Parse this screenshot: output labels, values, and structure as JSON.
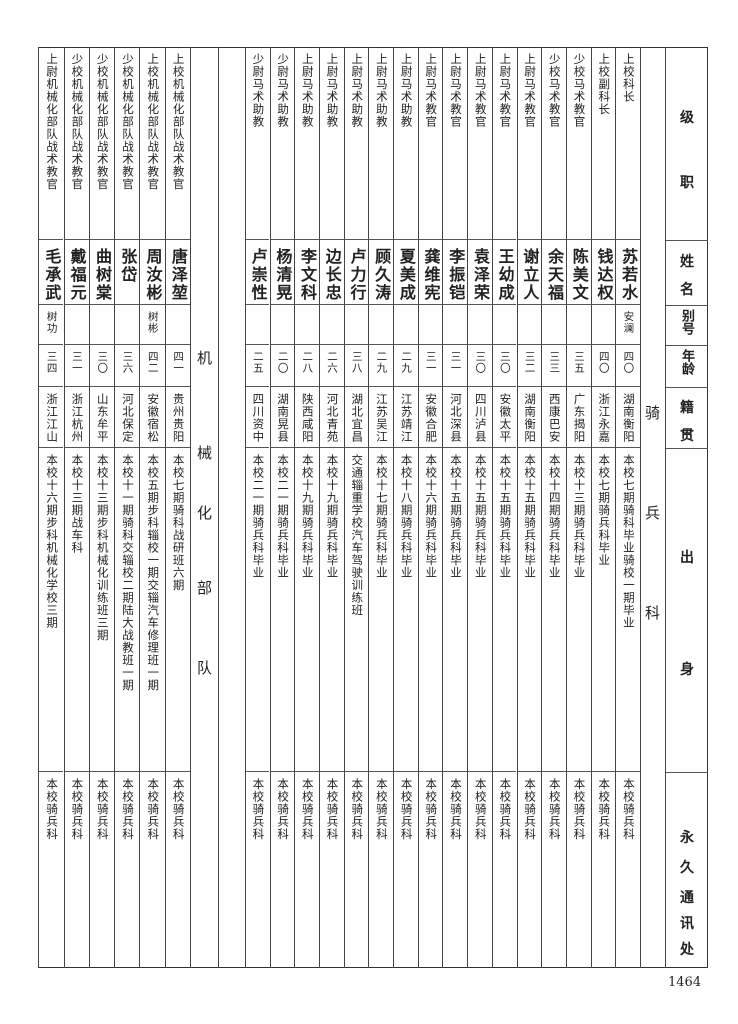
{
  "header": {
    "rank": [
      "级",
      "职"
    ],
    "name": [
      "姓",
      "名"
    ],
    "alias": "别号",
    "age": "年龄",
    "native": [
      "籍",
      "贯"
    ],
    "origin": [
      "出",
      "身"
    ],
    "address": [
      "永",
      "久",
      "通",
      "讯",
      "处"
    ]
  },
  "sections": {
    "cavalry": [
      "骑",
      "兵",
      "科"
    ],
    "mechanized": [
      "机",
      "械",
      "化",
      "部",
      "队"
    ]
  },
  "cavalry_rows": [
    {
      "rank": "上校科长",
      "name": "苏若水",
      "alias": "安澜",
      "age": "四〇",
      "native": "湖南衡阳",
      "origin": "本校七期骑科毕业骑校一期毕业",
      "address": "本校骑兵科"
    },
    {
      "rank": "上校副科长",
      "name": "钱达权",
      "alias": "",
      "age": "四〇",
      "native": "浙江永嘉",
      "origin": "本校七期骑兵科毕业",
      "address": "本校骑兵科"
    },
    {
      "rank": "少校马术教官",
      "name": "陈美文",
      "alias": "",
      "age": "三五",
      "native": "广东揭阳",
      "origin": "本校十三期骑兵科毕业",
      "address": "本校骑兵科"
    },
    {
      "rank": "少校马术教官",
      "name": "余天福",
      "alias": "",
      "age": "三三",
      "native": "西康巴安",
      "origin": "本校十四期骑兵科毕业",
      "address": "本校骑兵科"
    },
    {
      "rank": "上尉马术教官",
      "name": "谢立人",
      "alias": "",
      "age": "三二",
      "native": "湖南衡阳",
      "origin": "本校十五期骑兵科毕业",
      "address": "本校骑兵科"
    },
    {
      "rank": "上尉马术教官",
      "name": "王幼成",
      "alias": "",
      "age": "三〇",
      "native": "安徽太平",
      "origin": "本校十五期骑兵科毕业",
      "address": "本校骑兵科"
    },
    {
      "rank": "上尉马术教官",
      "name": "袁泽荣",
      "alias": "",
      "age": "三〇",
      "native": "四川泸县",
      "origin": "本校十五期骑兵科毕业",
      "address": "本校骑兵科"
    },
    {
      "rank": "上尉马术教官",
      "name": "李振铠",
      "alias": "",
      "age": "三一",
      "native": "河北深县",
      "origin": "本校十五期骑兵科毕业",
      "address": "本校骑兵科"
    },
    {
      "rank": "上尉马术教官",
      "name": "龚维宪",
      "alias": "",
      "age": "三一",
      "native": "安徽合肥",
      "origin": "本校十六期骑兵科毕业",
      "address": "本校骑兵科"
    },
    {
      "rank": "上尉马术助教",
      "name": "夏美成",
      "alias": "",
      "age": "二九",
      "native": "江苏靖江",
      "origin": "本校十八期骑兵科毕业",
      "address": "本校骑兵科"
    },
    {
      "rank": "上尉马术助教",
      "name": "顾久涛",
      "alias": "",
      "age": "二九",
      "native": "江苏吴江",
      "origin": "本校十七期骑兵科毕业",
      "address": "本校骑兵科"
    },
    {
      "rank": "上尉马术助教",
      "name": "卢力行",
      "alias": "",
      "age": "三八",
      "native": "湖北宜昌",
      "origin": "交通辎重学校汽车驾驶训练班",
      "address": "本校骑兵科"
    },
    {
      "rank": "上尉马术助教",
      "name": "边长忠",
      "alias": "",
      "age": "二六",
      "native": "河北青苑",
      "origin": "本校十九期骑兵科毕业",
      "address": "本校骑兵科"
    },
    {
      "rank": "上尉马术助教",
      "name": "李文科",
      "alias": "",
      "age": "二八",
      "native": "陕西咸阳",
      "origin": "本校十九期骑兵科毕业",
      "address": "本校骑兵科"
    },
    {
      "rank": "少尉马术助教",
      "name": "杨清晃",
      "alias": "",
      "age": "二〇",
      "native": "湖南晃县",
      "origin": "本校二一期骑兵科毕业",
      "address": "本校骑兵科"
    },
    {
      "rank": "少尉马术助教",
      "name": "卢崇性",
      "alias": "",
      "age": "二五",
      "native": "四川资中",
      "origin": "本校二一期骑兵科毕业",
      "address": "本校骑兵科"
    }
  ],
  "mechanized_rows": [
    {
      "rank": "上校机械化部队战术教官",
      "name": "唐泽堃",
      "alias": "",
      "age": "四一",
      "native": "贵州贵阳",
      "origin": "本校七期骑科战研班六期",
      "address": "本校骑兵科"
    },
    {
      "rank": "上校机械化部队战术教官",
      "name": "周汝彬",
      "alias": "树彬",
      "age": "四二",
      "native": "安徽宿松",
      "origin": "本校五期步科辎校一期交辎汽车修理班一期",
      "address": "本校骑兵科"
    },
    {
      "rank": "少校机械化部队战术教官",
      "name": "张岱",
      "alias": "",
      "age": "三六",
      "native": "河北保定",
      "origin": "本校十一期骑科交辎校二期陆大战教班一期",
      "address": "本校骑兵科"
    },
    {
      "rank": "少校机械化部队战术教官",
      "name": "曲树棠",
      "alias": "",
      "age": "三〇",
      "native": "山东牟平",
      "origin": "本校十三期步科机械化训练班三期",
      "address": "本校骑兵科"
    },
    {
      "rank": "少校机械化部队战术教官",
      "name": "戴福元",
      "alias": "",
      "age": "三一",
      "native": "浙江杭州",
      "origin": "本校十三期战车科",
      "address": "本校骑兵科"
    },
    {
      "rank": "上尉机械化部队战术教官",
      "name": "毛承武",
      "alias": "树功",
      "age": "三四",
      "native": "浙江江山",
      "origin": "本校十六期步科机械化学校三期",
      "address": "本校骑兵科"
    }
  ],
  "page_number": "1464"
}
